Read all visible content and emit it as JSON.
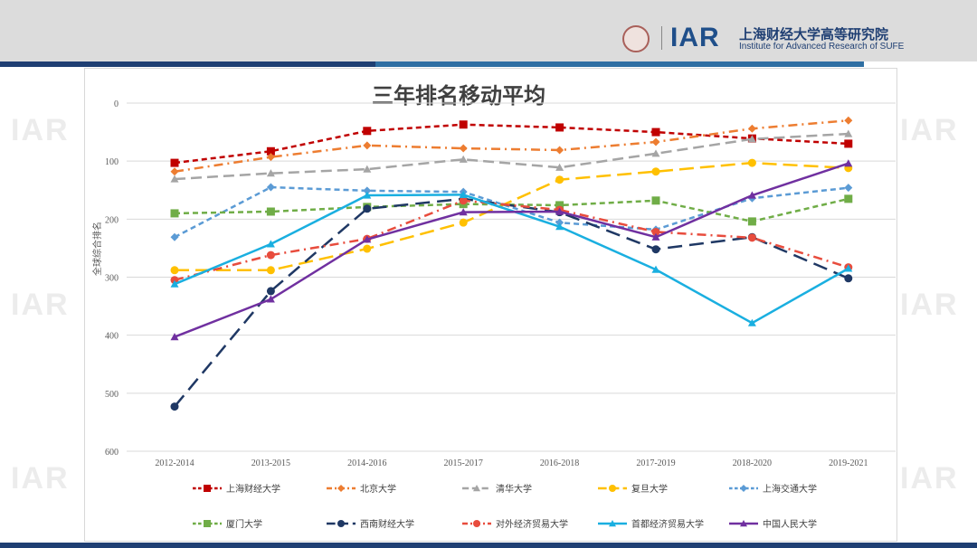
{
  "header": {
    "logo_text": "IAR",
    "institute_cn": "上海财经大学高等研究院",
    "institute_en": "Institute for Advanced Research of SUFE",
    "watermark": "IAR"
  },
  "chart_data": {
    "type": "line",
    "title": "三年排名移动平均",
    "xlabel": "",
    "ylabel": "全球综合排名",
    "ylim": [
      0,
      600
    ],
    "y_inverted": true,
    "yticks": [
      0,
      100,
      200,
      300,
      400,
      500,
      600
    ],
    "grid": true,
    "legend_position": "bottom",
    "categories": [
      "2012-2014",
      "2013-2015",
      "2014-2016",
      "2015-2017",
      "2016-2018",
      "2017-2019",
      "2018-2020",
      "2019-2021"
    ],
    "series": [
      {
        "name": "上海财经大学",
        "color": "#c00000",
        "dash": "6,4",
        "marker": "square",
        "values": [
          103,
          83,
          48,
          37,
          42,
          50,
          61,
          70
        ]
      },
      {
        "name": "北京大学",
        "color": "#ed7d31",
        "dash": "10,5,2,5",
        "marker": "diamond",
        "values": [
          118,
          93,
          73,
          78,
          81,
          67,
          44,
          30
        ]
      },
      {
        "name": "清华大学",
        "color": "#a5a5a5",
        "dash": "12,6",
        "marker": "triangle",
        "values": [
          131,
          121,
          114,
          97,
          111,
          87,
          62,
          53
        ]
      },
      {
        "name": "复旦大学",
        "color": "#ffc000",
        "dash": "16,7",
        "marker": "circle",
        "values": [
          288,
          288,
          251,
          206,
          132,
          118,
          103,
          112
        ]
      },
      {
        "name": "上海交通大学",
        "color": "#5b9bd5",
        "dash": "6,4",
        "marker": "diamond",
        "values": [
          231,
          145,
          151,
          153,
          206,
          218,
          164,
          146
        ]
      },
      {
        "name": "厦门大学",
        "color": "#70ad47",
        "dash": "6,4",
        "marker": "square",
        "values": [
          190,
          187,
          179,
          174,
          176,
          168,
          204,
          165
        ]
      },
      {
        "name": "西南财经大学",
        "color": "#1f3864",
        "dash": "16,8",
        "marker": "circle",
        "values": [
          523,
          324,
          182,
          165,
          188,
          252,
          231,
          302
        ]
      },
      {
        "name": "对外经济贸易大学",
        "color": "#e84c3d",
        "dash": "10,5,2,5",
        "marker": "circle",
        "values": [
          305,
          262,
          234,
          168,
          184,
          222,
          232,
          283
        ]
      },
      {
        "name": "首都经济贸易大学",
        "color": "#1aafe0",
        "dash": "",
        "marker": "triangle",
        "values": [
          312,
          243,
          159,
          158,
          213,
          287,
          379,
          285
        ]
      },
      {
        "name": "中国人民大学",
        "color": "#7030a0",
        "dash": "",
        "marker": "triangle",
        "values": [
          403,
          338,
          235,
          188,
          187,
          231,
          159,
          104
        ]
      }
    ]
  }
}
